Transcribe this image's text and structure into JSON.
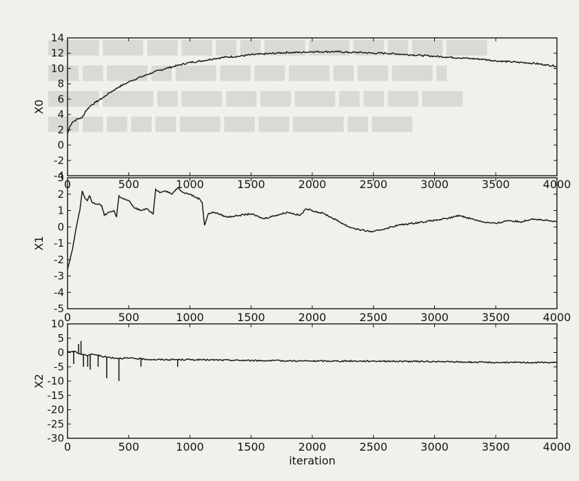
{
  "chart_data": [
    {
      "type": "line",
      "ylabel": "X0",
      "xlabel": "",
      "xlim": [
        0,
        4000
      ],
      "ylim": [
        -4,
        14
      ],
      "xticks": [
        "0",
        "500",
        "1000",
        "1500",
        "2000",
        "2500",
        "3000",
        "3500",
        "4000"
      ],
      "yticks": [
        "-4",
        "-2",
        "0",
        "2",
        "4",
        "6",
        "8",
        "10",
        "12",
        "14"
      ],
      "grid": false,
      "series": [
        {
          "x": [
            0,
            20,
            40,
            60,
            80,
            100,
            120,
            150,
            180,
            200,
            230,
            260,
            300,
            340,
            380,
            420,
            470,
            520,
            600,
            700,
            800,
            900,
            1000,
            1100,
            1200,
            1300,
            1400,
            1500,
            1600,
            1700,
            1800,
            1900,
            2000,
            2100,
            2200,
            2300,
            2400,
            2500,
            2600,
            2700,
            2800,
            2900,
            3000,
            3100,
            3200,
            3300,
            3400,
            3500,
            3600,
            3700,
            3800,
            3900,
            4000
          ],
          "y": [
            1.5,
            2.5,
            3.0,
            3.2,
            3.4,
            3.5,
            3.6,
            4.5,
            5.0,
            5.3,
            5.6,
            5.9,
            6.3,
            6.8,
            7.2,
            7.6,
            8.0,
            8.4,
            8.9,
            9.5,
            10.0,
            10.4,
            10.8,
            11.0,
            11.3,
            11.5,
            11.6,
            11.8,
            11.9,
            12.0,
            12.1,
            12.1,
            12.2,
            12.2,
            12.2,
            12.1,
            12.1,
            12.0,
            12.0,
            11.9,
            11.8,
            11.7,
            11.6,
            11.5,
            11.4,
            11.3,
            11.2,
            11.0,
            10.9,
            10.8,
            10.7,
            10.5,
            10.3
          ]
        }
      ]
    },
    {
      "type": "line",
      "ylabel": "X1",
      "xlabel": "",
      "xlim": [
        0,
        4000
      ],
      "ylim": [
        -5,
        3
      ],
      "xticks": [
        "0",
        "500",
        "1000",
        "1500",
        "2000",
        "2500",
        "3000",
        "3500",
        "4000"
      ],
      "yticks": [
        "-5",
        "-4",
        "-3",
        "-2",
        "-1",
        "0",
        "1",
        "2",
        "3"
      ],
      "grid": false,
      "series": [
        {
          "x": [
            0,
            20,
            40,
            60,
            80,
            100,
            120,
            140,
            160,
            180,
            200,
            240,
            280,
            300,
            340,
            380,
            400,
            420,
            460,
            500,
            540,
            600,
            650,
            700,
            720,
            760,
            800,
            850,
            900,
            950,
            1000,
            1050,
            1080,
            1100,
            1120,
            1150,
            1200,
            1300,
            1400,
            1500,
            1600,
            1700,
            1800,
            1900,
            1950,
            2000,
            2100,
            2200,
            2300,
            2400,
            2500,
            2600,
            2700,
            2800,
            2900,
            3000,
            3100,
            3200,
            3300,
            3400,
            3500,
            3600,
            3700,
            3800,
            3900,
            4000
          ],
          "y": [
            -2.6,
            -2.0,
            -1.4,
            -0.5,
            0.3,
            1.0,
            2.2,
            1.8,
            1.6,
            1.9,
            1.5,
            1.4,
            1.3,
            0.7,
            0.9,
            1.0,
            0.6,
            1.9,
            1.7,
            1.6,
            1.2,
            1.0,
            1.1,
            0.8,
            2.3,
            2.1,
            2.2,
            2.0,
            2.4,
            2.1,
            2.0,
            1.8,
            1.7,
            1.5,
            0.1,
            0.8,
            0.9,
            0.6,
            0.7,
            0.8,
            0.5,
            0.7,
            0.9,
            0.7,
            1.1,
            1.0,
            0.8,
            0.4,
            0.0,
            -0.2,
            -0.3,
            -0.1,
            0.1,
            0.2,
            0.3,
            0.4,
            0.5,
            0.7,
            0.5,
            0.3,
            0.2,
            0.4,
            0.3,
            0.5,
            0.4,
            0.3
          ]
        }
      ]
    },
    {
      "type": "line",
      "ylabel": "X2",
      "xlabel": "iteration",
      "xlim": [
        0,
        4000
      ],
      "ylim": [
        -30,
        10
      ],
      "xticks": [
        "0",
        "500",
        "1000",
        "1500",
        "2000",
        "2500",
        "3000",
        "3500",
        "4000"
      ],
      "yticks": [
        "-30",
        "-25",
        "-20",
        "-15",
        "-10",
        "-5",
        "0",
        "5",
        "10"
      ],
      "grid": false,
      "series": [
        {
          "x": [
            0,
            50,
            100,
            150,
            200,
            300,
            400,
            500,
            700,
            1000,
            1500,
            2000,
            2500,
            3000,
            3500,
            4000
          ],
          "y": [
            0.0,
            0.5,
            -0.5,
            -1.0,
            -0.5,
            -1.5,
            -2.0,
            -2.0,
            -2.5,
            -2.5,
            -2.8,
            -3.0,
            -3.0,
            -3.2,
            -3.5,
            -3.5
          ]
        }
      ],
      "spikes": [
        {
          "x": 50,
          "y": -4
        },
        {
          "x": 90,
          "y": 3
        },
        {
          "x": 110,
          "y": 4
        },
        {
          "x": 130,
          "y": -5
        },
        {
          "x": 165,
          "y": -5
        },
        {
          "x": 185,
          "y": -6
        },
        {
          "x": 250,
          "y": -5
        },
        {
          "x": 320,
          "y": -9
        },
        {
          "x": 420,
          "y": -10
        },
        {
          "x": 600,
          "y": -5
        },
        {
          "x": 900,
          "y": -5
        }
      ]
    }
  ]
}
